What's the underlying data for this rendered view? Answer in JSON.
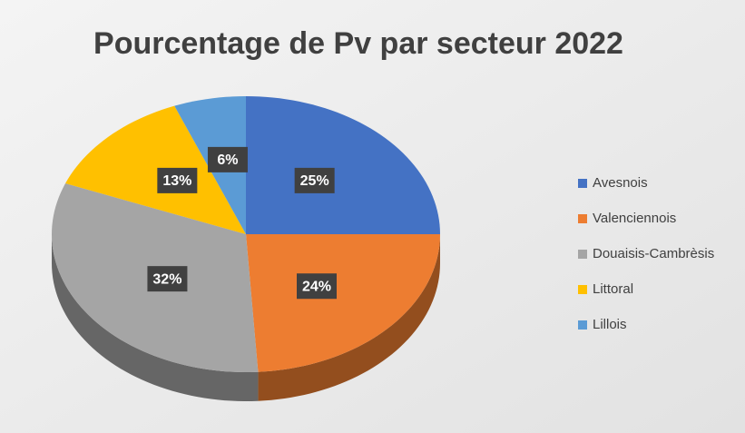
{
  "chart_data": {
    "type": "pie",
    "title": "Pourcentage de Pv par secteur 2022",
    "categories": [
      "Avesnois",
      "Valenciennois",
      "Douaisis-Cambrèsis",
      "Littoral",
      "Lillois"
    ],
    "values": [
      25,
      24,
      32,
      13,
      6
    ],
    "value_labels": [
      "25%",
      "24%",
      "32%",
      "13%",
      "6%"
    ],
    "colors": [
      "#4472c4",
      "#ed7d31",
      "#a5a5a5",
      "#ffc000",
      "#5b9bd5"
    ],
    "legend": "right"
  }
}
